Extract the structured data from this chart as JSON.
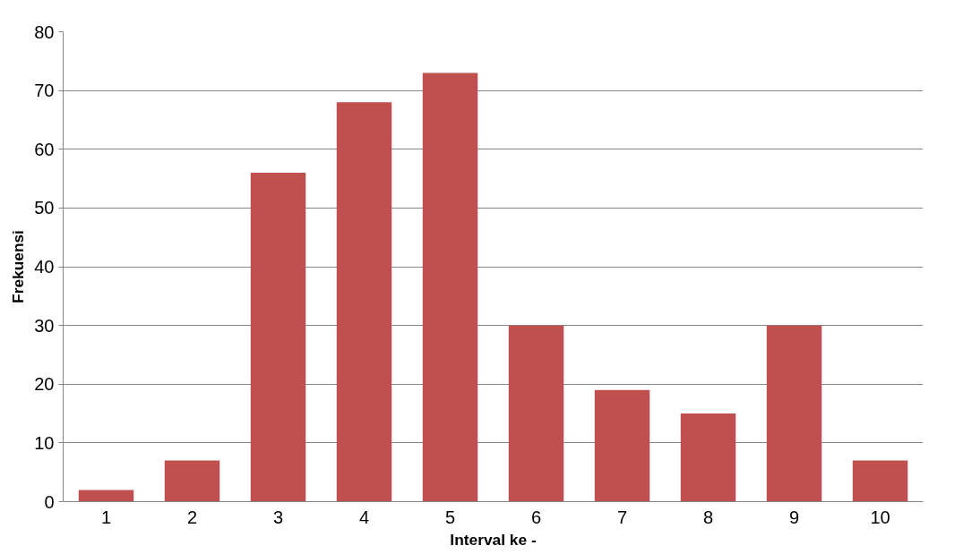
{
  "chart_data": {
    "type": "bar",
    "xlabel": "Interval ke -",
    "ylabel": "Frekuensi",
    "categories": [
      "1",
      "2",
      "3",
      "4",
      "5",
      "6",
      "7",
      "8",
      "9",
      "10"
    ],
    "values": [
      2,
      7,
      56,
      68,
      73,
      30,
      19,
      15,
      30,
      7
    ],
    "color": "#c0504d",
    "ylim": [
      0,
      80
    ],
    "yticks": [
      0,
      10,
      20,
      30,
      40,
      50,
      60,
      70,
      80
    ],
    "grid": "y"
  }
}
